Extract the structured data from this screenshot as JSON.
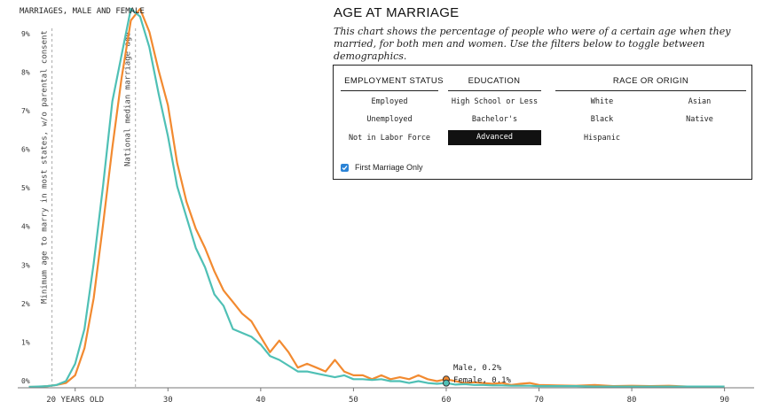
{
  "page": {
    "title": "AGE AT MARRIAGE",
    "subtitle": "This chart shows the percentage of people who were of a certain age when they married, for both men and women. Use the filters below to toggle between demographics."
  },
  "filters": {
    "groups": [
      {
        "id": "employment",
        "label": "EMPLOYMENT STATUS",
        "options": [
          {
            "label": "Employed",
            "selected": false
          },
          {
            "label": "Unemployed",
            "selected": false
          },
          {
            "label": "Not in Labor Force",
            "selected": false
          }
        ]
      },
      {
        "id": "education",
        "label": "EDUCATION",
        "options": [
          {
            "label": "High School or Less",
            "selected": false
          },
          {
            "label": "Bachelor's",
            "selected": false
          },
          {
            "label": "Advanced",
            "selected": true
          }
        ]
      },
      {
        "id": "race",
        "label": "RACE OR ORIGIN",
        "options": [
          {
            "label": "White",
            "selected": false
          },
          {
            "label": "Asian",
            "selected": false
          },
          {
            "label": "Black",
            "selected": false
          },
          {
            "label": "Native",
            "selected": false
          },
          {
            "label": "Hispanic",
            "selected": false
          }
        ]
      }
    ],
    "first_marriage": {
      "label": "First Marriage Only",
      "checked": true
    }
  },
  "chart_data": {
    "type": "line",
    "title": "MARRIAGES, MALE AND FEMALE",
    "x_axis": {
      "min": 14,
      "max": 93,
      "ticks": [
        20,
        30,
        40,
        50,
        60,
        70,
        80,
        90
      ],
      "tick_labels": [
        "20 YEARS OLD",
        "30",
        "40",
        "50",
        "60",
        "70",
        "80",
        "90"
      ]
    },
    "y_axis": {
      "min": 0,
      "max": 9.8,
      "ticks": [
        0,
        1,
        2,
        3,
        4,
        5,
        6,
        7,
        8,
        9
      ],
      "tick_labels": [
        "0%",
        "1%",
        "2%",
        "3%",
        "4%",
        "5%",
        "6%",
        "7%",
        "8%",
        "9%"
      ]
    },
    "reference_lines": [
      {
        "x": 17.5,
        "label": "Minimum age to marry in most states, w/o parental consent"
      },
      {
        "x": 26.5,
        "label": "National median marriage age"
      }
    ],
    "series": [
      {
        "name": "Male",
        "color": "#f28a30",
        "x": [
          15,
          16,
          17,
          18,
          19,
          20,
          21,
          22,
          23,
          24,
          25,
          26,
          27,
          28,
          29,
          30,
          31,
          32,
          33,
          34,
          35,
          36,
          37,
          38,
          39,
          40,
          41,
          42,
          43,
          44,
          45,
          46,
          47,
          48,
          49,
          50,
          51,
          52,
          53,
          54,
          55,
          56,
          57,
          58,
          59,
          60,
          61,
          62,
          63,
          64,
          65,
          66,
          67,
          68,
          69,
          70,
          72,
          74,
          76,
          78,
          80,
          82,
          84,
          86,
          88,
          90
        ],
        "y": [
          0,
          0,
          0.02,
          0.05,
          0.1,
          0.3,
          1.0,
          2.3,
          4.2,
          6.2,
          8.0,
          9.5,
          9.8,
          9.2,
          8.2,
          7.3,
          5.8,
          4.8,
          4.1,
          3.6,
          3.0,
          2.5,
          2.2,
          1.9,
          1.7,
          1.3,
          0.9,
          1.2,
          0.9,
          0.5,
          0.6,
          0.5,
          0.4,
          0.7,
          0.4,
          0.3,
          0.3,
          0.2,
          0.3,
          0.2,
          0.25,
          0.2,
          0.3,
          0.2,
          0.15,
          0.2,
          0.15,
          0.1,
          0.12,
          0.1,
          0.08,
          0.1,
          0.05,
          0.08,
          0.1,
          0.05,
          0.04,
          0.03,
          0.05,
          0.02,
          0.03,
          0.02,
          0.03,
          0.01,
          0.01,
          0.01
        ]
      },
      {
        "name": "Female",
        "color": "#4fc0b5",
        "x": [
          15,
          16,
          17,
          18,
          19,
          20,
          21,
          22,
          23,
          24,
          25,
          26,
          27,
          28,
          29,
          30,
          31,
          32,
          33,
          34,
          35,
          36,
          37,
          38,
          39,
          40,
          41,
          42,
          43,
          44,
          45,
          46,
          47,
          48,
          49,
          50,
          51,
          52,
          53,
          54,
          55,
          56,
          57,
          58,
          59,
          60,
          61,
          62,
          63,
          64,
          65,
          66,
          67,
          68,
          69,
          70,
          72,
          74,
          76,
          78,
          80,
          82,
          84,
          86,
          88,
          90
        ],
        "y": [
          0,
          0.01,
          0.02,
          0.05,
          0.15,
          0.6,
          1.5,
          3.2,
          5.2,
          7.4,
          8.6,
          9.8,
          9.6,
          8.8,
          7.6,
          6.5,
          5.2,
          4.4,
          3.6,
          3.1,
          2.4,
          2.1,
          1.5,
          1.4,
          1.3,
          1.1,
          0.8,
          0.7,
          0.55,
          0.4,
          0.4,
          0.35,
          0.3,
          0.25,
          0.3,
          0.2,
          0.2,
          0.18,
          0.2,
          0.15,
          0.15,
          0.1,
          0.15,
          0.1,
          0.08,
          0.1,
          0.06,
          0.07,
          0.05,
          0.05,
          0.04,
          0.04,
          0.03,
          0.03,
          0.03,
          0.02,
          0.02,
          0.02,
          0.01,
          0.01,
          0.01,
          0.01,
          0.01,
          0.01,
          0.01,
          0.01
        ]
      }
    ],
    "annotations": [
      {
        "series": "Male",
        "x": 60,
        "y": 0.2,
        "label": "Male, 0.2%"
      },
      {
        "series": "Female",
        "x": 60,
        "y": 0.1,
        "label": "Female, 0.1%"
      }
    ]
  }
}
